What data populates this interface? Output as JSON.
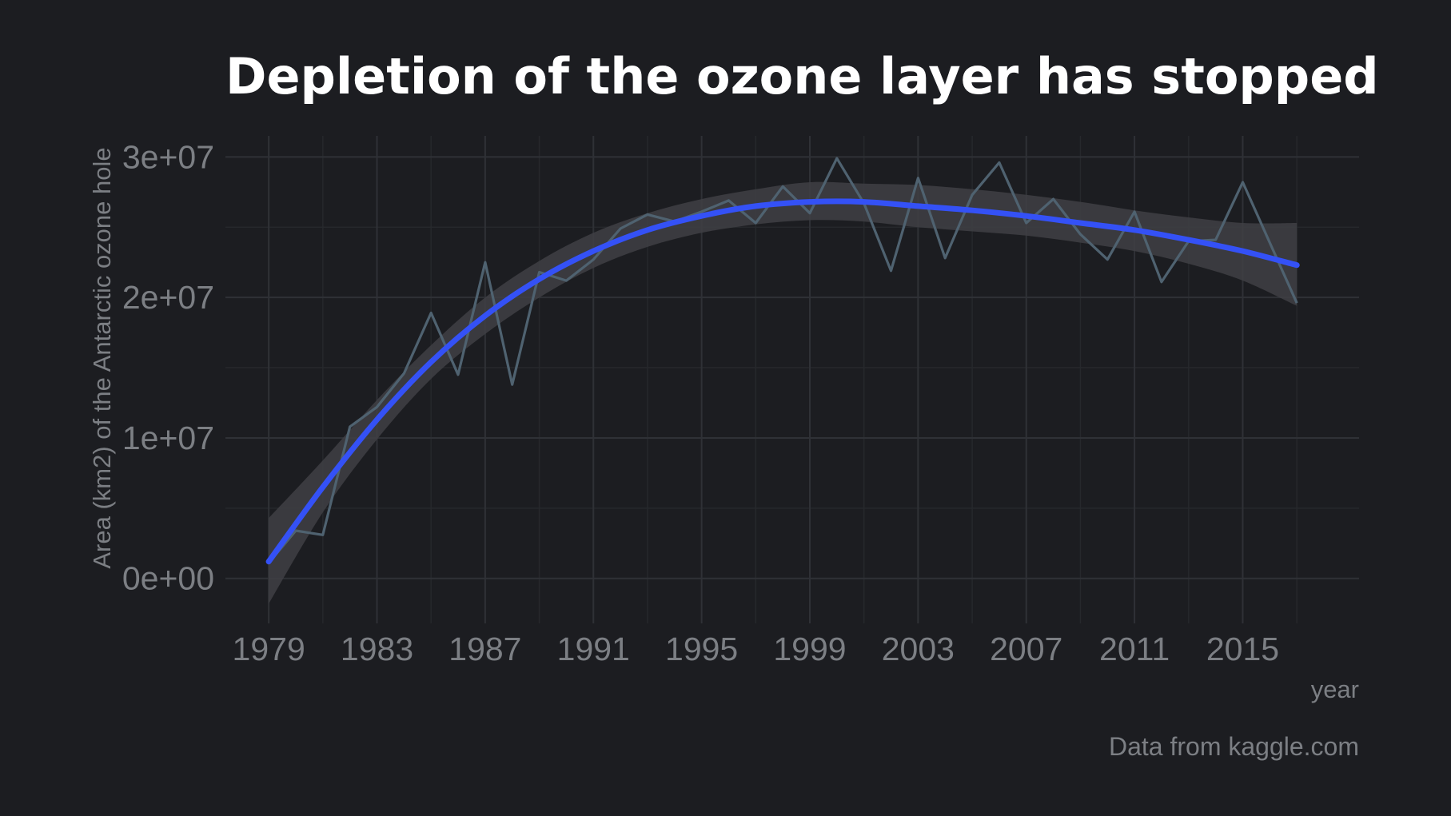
{
  "chart_data": {
    "type": "line",
    "title": "Depletion of the ozone layer has stopped",
    "xlabel": "year",
    "ylabel": "Area (km2) of the Antarctic ozone hole",
    "caption": "Data from kaggle.com",
    "xlim": [
      1977.4,
      2019.3
    ],
    "ylim": [
      -3200000,
      31500000
    ],
    "x_ticks": [
      1979,
      1983,
      1987,
      1991,
      1995,
      1999,
      2003,
      2007,
      2011,
      2015
    ],
    "x_tick_labels": [
      "1979",
      "1983",
      "1987",
      "1991",
      "1995",
      "1999",
      "2003",
      "2007",
      "2011",
      "2015"
    ],
    "y_ticks": [
      0,
      10000000,
      20000000,
      30000000
    ],
    "y_tick_labels": [
      "0e+00",
      "1e+07",
      "2e+07",
      "3e+07"
    ],
    "grid": true,
    "legend": "none",
    "colors": {
      "background": "#1c1d21",
      "grid_major": "#2f3136",
      "grid_minor": "#26282c",
      "observed_line": "#4f6270",
      "smooth_line": "#3451f6",
      "confidence_band": "#3f4044"
    },
    "series": [
      {
        "kind": "observed",
        "x": [
          1979,
          1980,
          1981,
          1982,
          1983,
          1984,
          1985,
          1986,
          1987,
          1988,
          1989,
          1990,
          1991,
          1992,
          1993,
          1994,
          1995,
          1996,
          1997,
          1998,
          1999,
          2000,
          2001,
          2002,
          2003,
          2004,
          2005,
          2006,
          2007,
          2008,
          2009,
          2010,
          2011,
          2012,
          2013,
          2014,
          2015,
          2016,
          2017
        ],
        "y": [
          1100000,
          3400000,
          3100000,
          10800000,
          12200000,
          14600000,
          18900000,
          14500000,
          22500000,
          13800000,
          21800000,
          21200000,
          22700000,
          24900000,
          25900000,
          25400000,
          26100000,
          26900000,
          25300000,
          27900000,
          26000000,
          29900000,
          26700000,
          21900000,
          28500000,
          22800000,
          27300000,
          29600000,
          25300000,
          27000000,
          24500000,
          22700000,
          26100000,
          21100000,
          24000000,
          24100000,
          28200000,
          23900000,
          19600000
        ]
      },
      {
        "kind": "smooth",
        "x": [
          1979,
          1981,
          1983,
          1985,
          1987,
          1989,
          1991,
          1993,
          1995,
          1997,
          1999,
          2001,
          2003,
          2005,
          2007,
          2009,
          2011,
          2013,
          2015,
          2017
        ],
        "y": [
          1200000,
          6500000,
          11300000,
          15400000,
          18700000,
          21300000,
          23300000,
          24800000,
          25800000,
          26500000,
          26800000,
          26800000,
          26500000,
          26200000,
          25800000,
          25300000,
          24800000,
          24100000,
          23300000,
          22300000
        ],
        "lower": [
          -1800000,
          4700000,
          9900000,
          14200000,
          17400000,
          20000000,
          22100000,
          23600000,
          24600000,
          25200000,
          25500000,
          25400000,
          25000000,
          24700000,
          24400000,
          23900000,
          23300000,
          22400000,
          21200000,
          19400000
        ],
        "upper": [
          4300000,
          8400000,
          12700000,
          16600000,
          20000000,
          22600000,
          24600000,
          26000000,
          27000000,
          27700000,
          28200000,
          28100000,
          28000000,
          27700000,
          27300000,
          26800000,
          26200000,
          25700000,
          25300000,
          25300000
        ]
      }
    ]
  }
}
